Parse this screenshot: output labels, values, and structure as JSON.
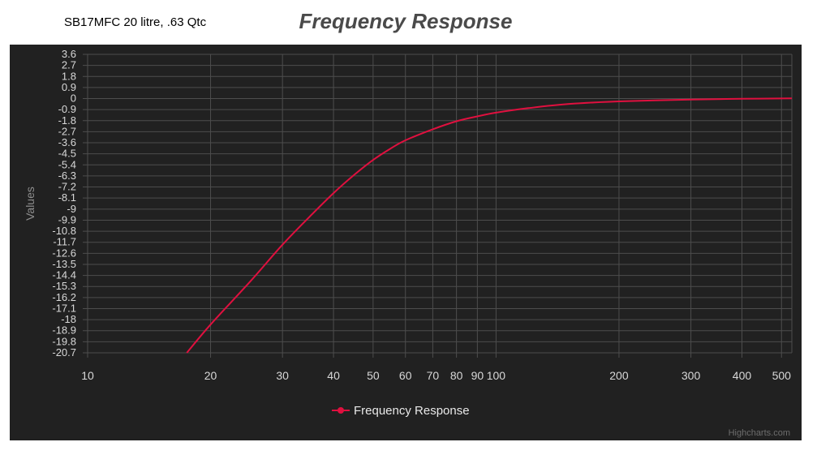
{
  "header": {
    "subtitle": "SB17MFC 20 litre, .63 Qtc",
    "title": "Frequency Response"
  },
  "credits": "Highcharts.com",
  "colors": {
    "background": "#212121",
    "series": "#e0103f",
    "grid": "#4d4d4d"
  },
  "chart_data": {
    "type": "line",
    "title": "Frequency Response",
    "subtitle": "SB17MFC 20 litre, .63 Qtc",
    "xlabel": "",
    "ylabel": "Values",
    "x_scale": "log",
    "xlim": [
      10,
      530
    ],
    "ylim": [
      -20.7,
      3.6
    ],
    "grid": true,
    "legend_position": "bottom-center",
    "y_ticks": [
      "3.6",
      "2.7",
      "1.8",
      "0.9",
      "0",
      "-0.9",
      "-1.8",
      "-2.7",
      "-3.6",
      "-4.5",
      "-5.4",
      "-6.3",
      "-7.2",
      "-8.1",
      "-9",
      "-9.9",
      "-10.8",
      "-11.7",
      "-12.6",
      "-13.5",
      "-14.4",
      "-15.3",
      "-16.2",
      "-17.1",
      "-18",
      "-18.9",
      "-19.8",
      "-20.7"
    ],
    "x_tick_labels": [
      "10",
      "20",
      "30",
      "40",
      "50",
      "60",
      "70",
      "80",
      "90",
      "100",
      "200",
      "300",
      "400",
      "500"
    ],
    "series": [
      {
        "name": "Frequency Response",
        "color": "#e0103f",
        "x": [
          17.5,
          20,
          25,
          30,
          35,
          40,
          45,
          50,
          55,
          60,
          70,
          80,
          90,
          100,
          120,
          150,
          200,
          300,
          400,
          530
        ],
        "y": [
          -20.7,
          -18.4,
          -14.9,
          -11.9,
          -9.6,
          -7.7,
          -6.2,
          -5.0,
          -4.1,
          -3.4,
          -2.5,
          -1.85,
          -1.45,
          -1.15,
          -0.78,
          -0.45,
          -0.23,
          -0.08,
          -0.02,
          0.02
        ]
      }
    ]
  }
}
